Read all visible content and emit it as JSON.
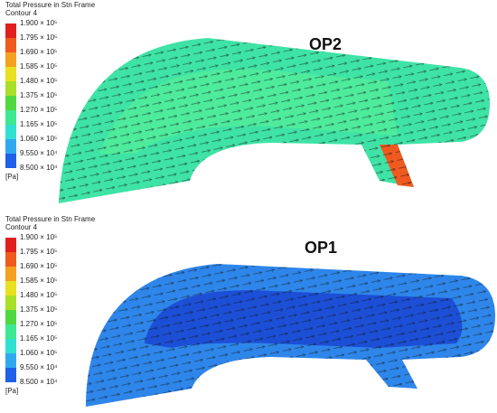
{
  "panels": [
    {
      "label": "OP2",
      "legend": {
        "title": "Total Pressure in Stn Frame",
        "subtitle": "Contour 4",
        "levels": [
          "1.900 × 10⁵",
          "1.795 × 10⁵",
          "1.690 × 10⁵",
          "1.585 × 10⁵",
          "1.480 × 10⁵",
          "1.375 × 10⁵",
          "1.270 × 10⁵",
          "1.165 × 10⁵",
          "1.060 × 10⁵",
          "9.550 × 10⁴",
          "8.500 × 10⁴"
        ],
        "unit": "[Pa]"
      }
    },
    {
      "label": "OP1",
      "legend": {
        "title": "Total Pressure in Stn Frame",
        "subtitle": "Contour 4",
        "levels": [
          "1.900 × 10⁵",
          "1.795 × 10⁵",
          "1.690 × 10⁵",
          "1.585 × 10⁵",
          "1.480 × 10⁵",
          "1.375 × 10⁵",
          "1.270 × 10⁵",
          "1.165 × 10⁵",
          "1.060 × 10⁵",
          "9.550 × 10⁴",
          "8.500 × 10⁴"
        ],
        "unit": "[Pa]"
      }
    }
  ]
}
